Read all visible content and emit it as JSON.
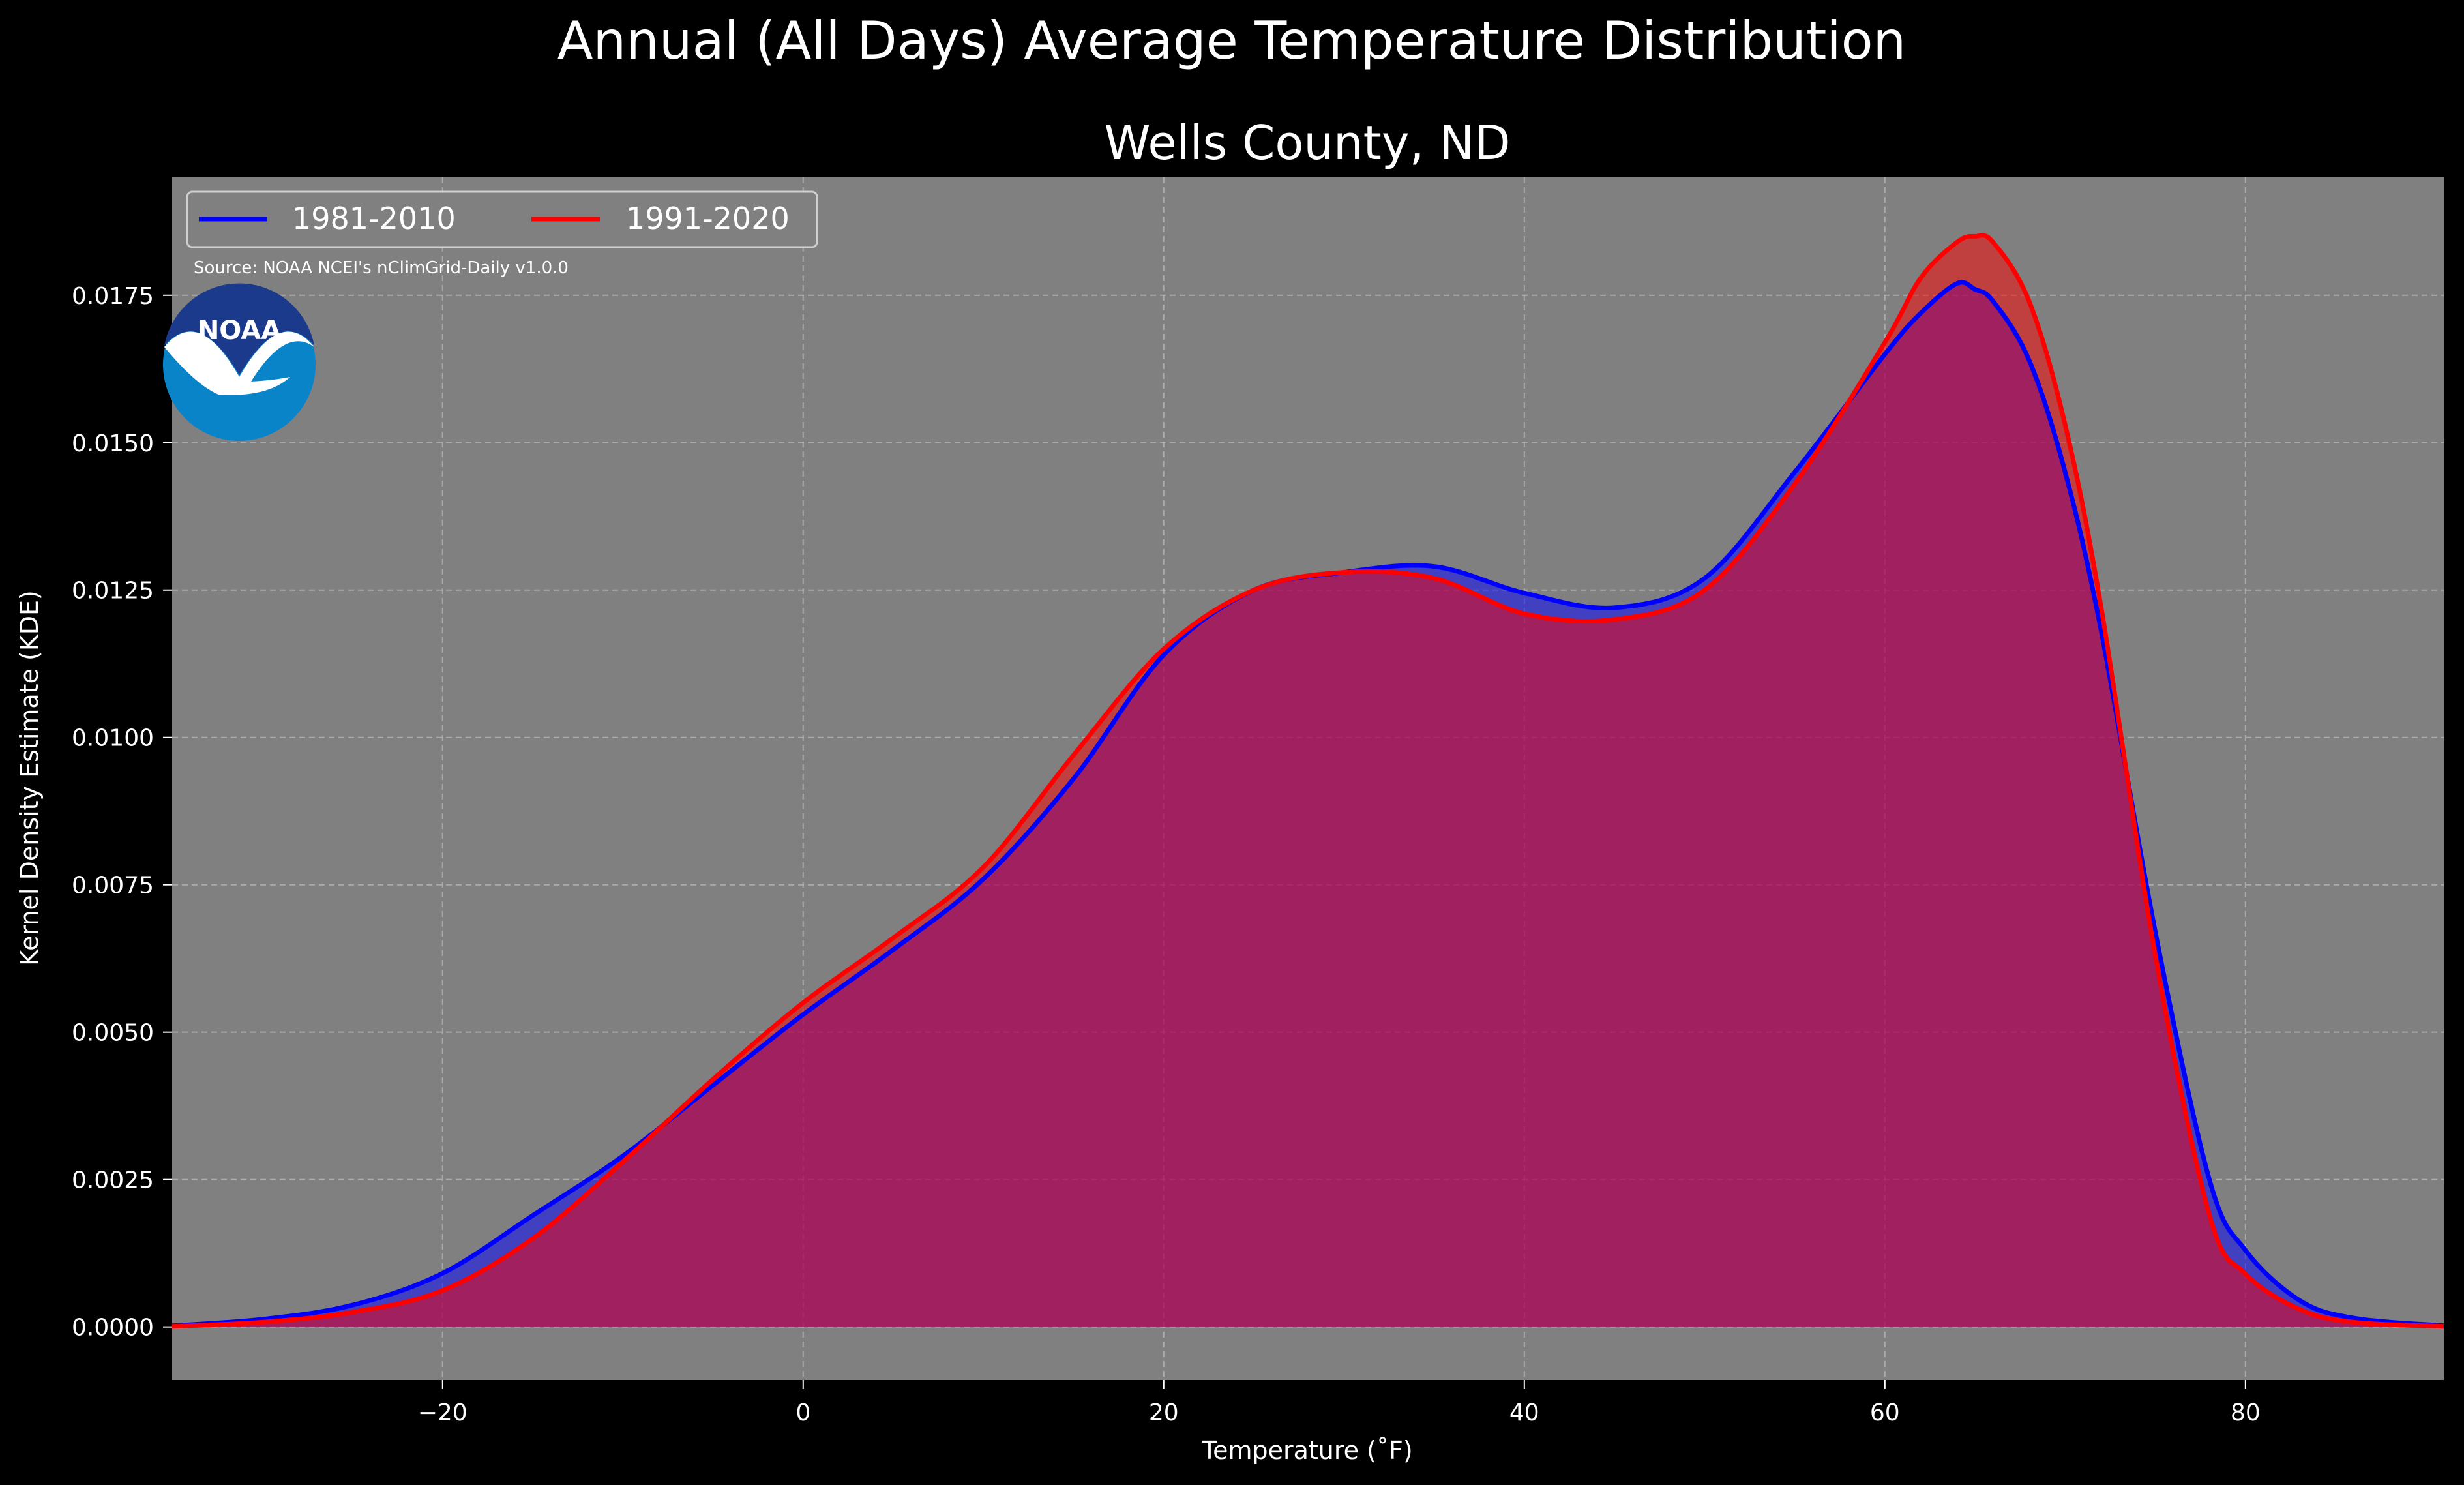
{
  "chart_data": {
    "type": "area",
    "suptitle": "Annual (All Days) Average Temperature Distribution",
    "title": "Wells County, ND",
    "xlabel": "Temperature ($^\\circ$F)",
    "xlabel_display": "Temperature (˚F)",
    "ylabel": "Kernel Density Estimate (KDE)",
    "xlim": [
      -35,
      91
    ],
    "ylim": [
      -0.0009,
      0.0195
    ],
    "x_ticks": [
      -20,
      0,
      20,
      40,
      60,
      80
    ],
    "x_tick_labels": [
      "−20",
      "0",
      "20",
      "40",
      "60",
      "80"
    ],
    "y_ticks": [
      0,
      0.0025,
      0.005,
      0.0075,
      0.01,
      0.0125,
      0.015,
      0.0175
    ],
    "y_tick_labels": [
      "0.0000",
      "0.0025",
      "0.0050",
      "0.0075",
      "0.0100",
      "0.0125",
      "0.0150",
      "0.0175"
    ],
    "grid": true,
    "legend_position": "top-left",
    "source_note": "Source: NOAA NCEI's nClimGrid-Daily v1.0.0",
    "logo_text": "NOAA",
    "colors": {
      "background": "#000000",
      "plot_bg": "#808080",
      "series_1": "#0000ff",
      "series_2": "#ff0000",
      "fill_overlap": "#9c1e5c"
    },
    "x": [
      -35,
      -30,
      -25,
      -20,
      -15,
      -10,
      -5,
      0,
      5,
      10,
      15,
      20,
      25,
      30,
      35,
      40,
      45,
      50,
      55,
      60,
      62,
      64,
      65,
      66,
      68,
      70,
      72,
      75,
      78,
      80,
      83,
      86,
      91
    ],
    "series": [
      {
        "name": "1981-2010",
        "values": [
          2e-05,
          0.00013,
          0.00037,
          0.00091,
          0.00189,
          0.0029,
          0.0041,
          0.0053,
          0.0064,
          0.0076,
          0.0093,
          0.0114,
          0.0125,
          0.0128,
          0.0129,
          0.01245,
          0.0122,
          0.0127,
          0.0145,
          0.0165,
          0.0172,
          0.0177,
          0.0176,
          0.0174,
          0.0164,
          0.0145,
          0.0118,
          0.0067,
          0.0025,
          0.0013,
          0.00045,
          0.00015,
          2e-05
        ]
      },
      {
        "name": "1991-2020",
        "values": [
          1e-05,
          8e-05,
          0.00025,
          0.00062,
          0.0015,
          0.0028,
          0.0042,
          0.0055,
          0.0066,
          0.0078,
          0.0097,
          0.0115,
          0.0125,
          0.0128,
          0.0127,
          0.0121,
          0.012,
          0.0125,
          0.0143,
          0.0167,
          0.0178,
          0.0184,
          0.0185,
          0.0184,
          0.0174,
          0.0153,
          0.0122,
          0.0063,
          0.0019,
          0.0009,
          0.0003,
          8e-05,
          1e-05
        ]
      }
    ]
  }
}
